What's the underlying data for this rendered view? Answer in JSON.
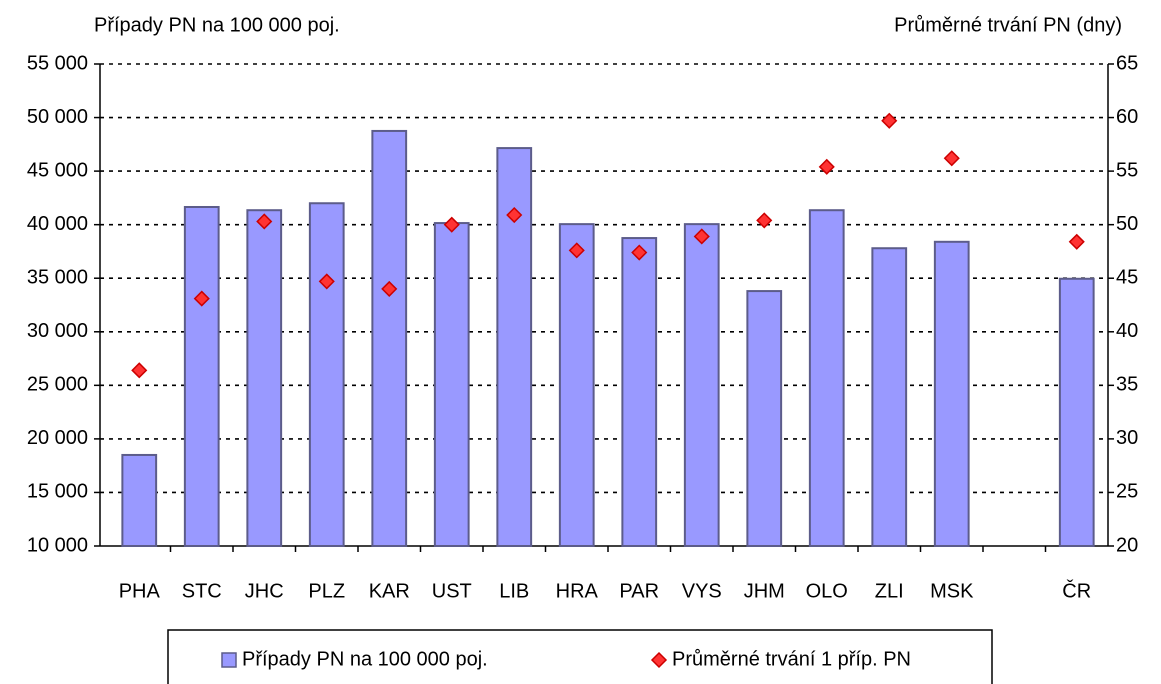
{
  "chart_data": {
    "type": "bar",
    "y_label": "Případy PN na 100 000 poj.",
    "y2_label": "Průměrné trvání PN (dny)",
    "categories": [
      "PHA",
      "STC",
      "JHC",
      "PLZ",
      "KAR",
      "UST",
      "LIB",
      "HRA",
      "PAR",
      "VYS",
      "JHM",
      "OLO",
      "ZLI",
      "MSK",
      null,
      "ČR"
    ],
    "series": [
      {
        "name": "Případy PN na 100 000 poj.",
        "type": "bar",
        "color": "#9999ff",
        "edge_color": "#5c5c8a",
        "values": [
          18500,
          41650,
          41350,
          42000,
          48750,
          40150,
          47150,
          40050,
          38750,
          40050,
          33800,
          41350,
          37800,
          38400,
          null,
          34950
        ]
      },
      {
        "name": "Průměrné trvání 1 příp. PN",
        "type": "scatter",
        "axis": "y2",
        "color": "#ff3333",
        "edge_color": "#cc0000",
        "values": [
          36.4,
          43.1,
          50.3,
          44.7,
          44.0,
          50.0,
          50.9,
          47.6,
          47.4,
          48.9,
          50.4,
          55.4,
          59.7,
          56.2,
          null,
          48.4
        ]
      }
    ],
    "ylim": [
      10000,
      55000
    ],
    "yticks": [
      {
        "value": 10000,
        "label": "10 000"
      },
      {
        "value": 15000,
        "label": "15 000"
      },
      {
        "value": 20000,
        "label": "20 000"
      },
      {
        "value": 25000,
        "label": "25 000"
      },
      {
        "value": 30000,
        "label": "30 000"
      },
      {
        "value": 35000,
        "label": "35 000"
      },
      {
        "value": 40000,
        "label": "40 000"
      },
      {
        "value": 45000,
        "label": "45 000"
      },
      {
        "value": 50000,
        "label": "50 000"
      },
      {
        "value": 55000,
        "label": "55 000"
      }
    ],
    "y2lim": [
      20,
      65
    ],
    "y2ticks": [
      20,
      25,
      30,
      35,
      40,
      45,
      50,
      55,
      60,
      65
    ],
    "grid": true,
    "legend": "bottom"
  }
}
